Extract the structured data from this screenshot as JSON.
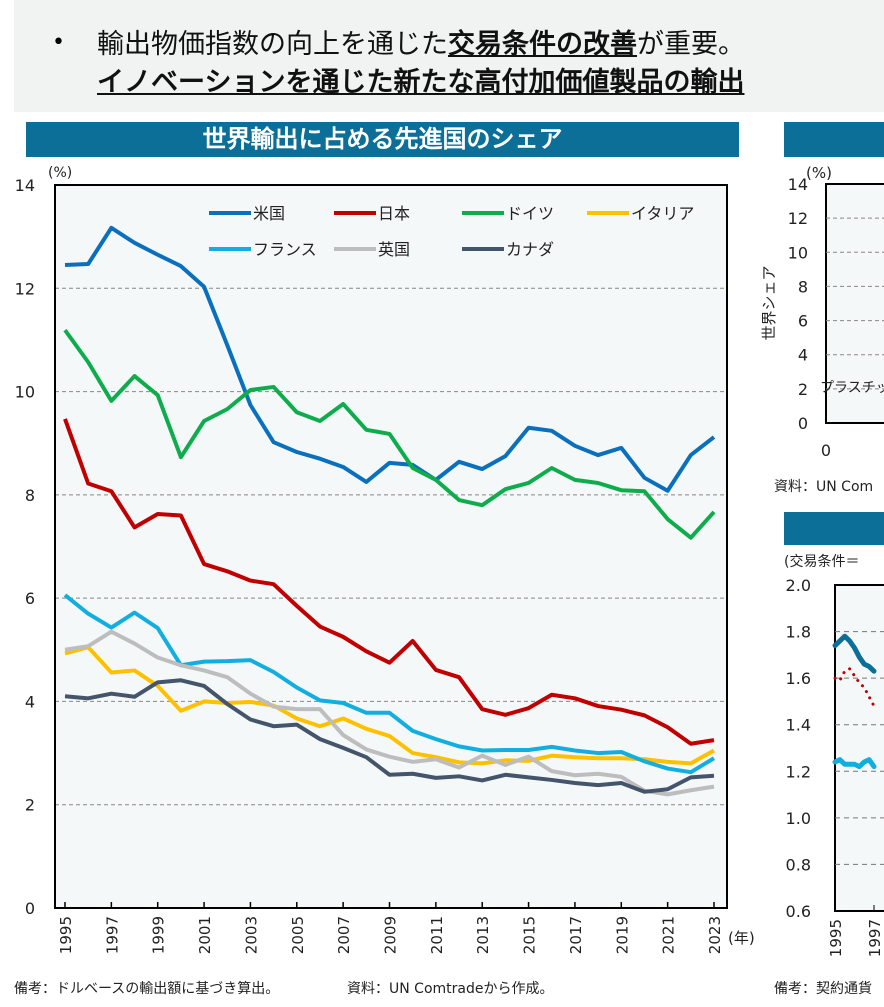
{
  "header": {
    "bullet": "•",
    "line1_prefix": "輸出物価指数の向上を通じた",
    "line1_bold": "交易条件の改善",
    "line1_suffix": "が重要。",
    "line2": "イノベーションを通じた新たな高付加価値製品の輸出"
  },
  "colors": {
    "title_bar": "#0b6f98",
    "plot_bg": "#f5f8f8"
  },
  "chart_data": [
    {
      "type": "line",
      "title": "世界輸出に占める先進国のシェア",
      "ylabel": "(%)",
      "xlabel": "(年)",
      "ylim": [
        0,
        14
      ],
      "yticks": [
        0,
        2,
        4,
        6,
        8,
        10,
        12,
        14
      ],
      "grid": true,
      "legend_position": "top",
      "x": [
        1995,
        1996,
        1997,
        1998,
        1999,
        2000,
        2001,
        2002,
        2003,
        2004,
        2005,
        2006,
        2007,
        2008,
        2009,
        2010,
        2011,
        2012,
        2013,
        2014,
        2015,
        2016,
        2017,
        2018,
        2019,
        2020,
        2021,
        2022,
        2023
      ],
      "xticks": [
        "1995",
        "1997",
        "1999",
        "2001",
        "2003",
        "2005",
        "2007",
        "2009",
        "2011",
        "2013",
        "2015",
        "2017",
        "2019",
        "2021",
        "2023"
      ],
      "series": [
        {
          "name": "米国",
          "color": "#0a6fbd",
          "values": [
            12.45,
            12.47,
            13.17,
            12.88,
            12.65,
            12.43,
            12.03,
            10.9,
            9.74,
            9.02,
            8.83,
            8.7,
            8.54,
            8.25,
            8.62,
            8.58,
            8.29,
            8.64,
            8.5,
            8.75,
            9.3,
            9.24,
            8.95,
            8.77,
            8.91,
            8.33,
            8.08,
            8.77,
            9.12
          ]
        },
        {
          "name": "日本",
          "color": "#c00000",
          "values": [
            9.47,
            8.22,
            8.07,
            7.37,
            7.63,
            7.6,
            6.66,
            6.52,
            6.34,
            6.27,
            5.85,
            5.45,
            5.25,
            4.97,
            4.75,
            5.17,
            4.61,
            4.47,
            3.85,
            3.74,
            3.87,
            4.13,
            4.06,
            3.91,
            3.84,
            3.73,
            3.5,
            3.18,
            3.25
          ]
        },
        {
          "name": "ドイツ",
          "color": "#0fac4d",
          "values": [
            11.19,
            10.57,
            9.82,
            10.3,
            9.93,
            8.73,
            9.43,
            9.66,
            10.03,
            10.09,
            9.6,
            9.43,
            9.76,
            9.26,
            9.18,
            8.52,
            8.29,
            7.9,
            7.8,
            8.11,
            8.23,
            8.52,
            8.29,
            8.23,
            8.09,
            8.07,
            7.53,
            7.17,
            7.67
          ]
        },
        {
          "name": "イタリア",
          "color": "#ffc000",
          "values": [
            4.93,
            5.05,
            4.56,
            4.6,
            4.3,
            3.82,
            4.0,
            3.97,
            3.99,
            3.92,
            3.67,
            3.52,
            3.67,
            3.47,
            3.33,
            3.0,
            2.92,
            2.82,
            2.8,
            2.86,
            2.85,
            2.95,
            2.92,
            2.9,
            2.9,
            2.88,
            2.83,
            2.8,
            3.05
          ]
        },
        {
          "name": "フランス",
          "color": "#12aee0",
          "values": [
            6.06,
            5.7,
            5.43,
            5.72,
            5.42,
            4.7,
            4.77,
            4.78,
            4.8,
            4.57,
            4.27,
            4.02,
            3.97,
            3.78,
            3.78,
            3.43,
            3.27,
            3.13,
            3.05,
            3.06,
            3.06,
            3.12,
            3.05,
            3.0,
            3.02,
            2.84,
            2.7,
            2.63,
            2.9
          ]
        },
        {
          "name": "英国",
          "color": "#bdbdbd",
          "values": [
            5.0,
            5.07,
            5.35,
            5.12,
            4.85,
            4.7,
            4.6,
            4.47,
            4.15,
            3.9,
            3.85,
            3.85,
            3.35,
            3.07,
            2.93,
            2.83,
            2.88,
            2.72,
            2.95,
            2.77,
            2.93,
            2.65,
            2.57,
            2.6,
            2.54,
            2.27,
            2.2,
            2.28,
            2.35
          ]
        },
        {
          "name": "カナダ",
          "color": "#44546a",
          "values": [
            4.1,
            4.06,
            4.15,
            4.09,
            4.37,
            4.41,
            4.3,
            3.95,
            3.65,
            3.52,
            3.55,
            3.27,
            3.1,
            2.92,
            2.58,
            2.6,
            2.52,
            2.55,
            2.47,
            2.58,
            2.53,
            2.48,
            2.42,
            2.38,
            2.42,
            2.25,
            2.3,
            2.53,
            2.56
          ]
        }
      ],
      "note": "備考：ドルベースの輸出額に基づき算出。",
      "source": "資料：UN Comtradeから作成。"
    },
    {
      "type": "line",
      "ylabel_unit": "(%)",
      "ylabel": "世界シェア",
      "ylim": [
        0,
        14
      ],
      "yticks": [
        0,
        2,
        4,
        6,
        8,
        10,
        12,
        14
      ],
      "xticks": [
        "0"
      ],
      "annotation": "プラスチッ",
      "source": "資料：UN Com"
    },
    {
      "type": "line",
      "subtitle": "(交易条件＝",
      "ylim": [
        0.6,
        2.0
      ],
      "yticks": [
        "0.6",
        "0.8",
        "1.0",
        "1.2",
        "1.4",
        "1.6",
        "1.8",
        "2.0"
      ],
      "xticks": [
        "1995",
        "1997"
      ],
      "x": [
        1995.0,
        1995.25,
        1995.5,
        1995.75,
        1996.0,
        1996.25,
        1996.5,
        1996.75,
        1997.0
      ],
      "series": [
        {
          "color": "#0b6f98",
          "style": "solid",
          "values": [
            1.74,
            1.76,
            1.78,
            1.76,
            1.73,
            1.69,
            1.66,
            1.65,
            1.63
          ]
        },
        {
          "color": "#c00000",
          "style": "dotted",
          "values": [
            1.6,
            1.59,
            1.63,
            1.64,
            1.61,
            1.58,
            1.56,
            1.52,
            1.48
          ]
        },
        {
          "color": "#12aee0",
          "style": "solid",
          "values": [
            1.24,
            1.25,
            1.23,
            1.23,
            1.23,
            1.22,
            1.24,
            1.25,
            1.22
          ]
        }
      ],
      "note": "備考：契約通貨"
    }
  ]
}
